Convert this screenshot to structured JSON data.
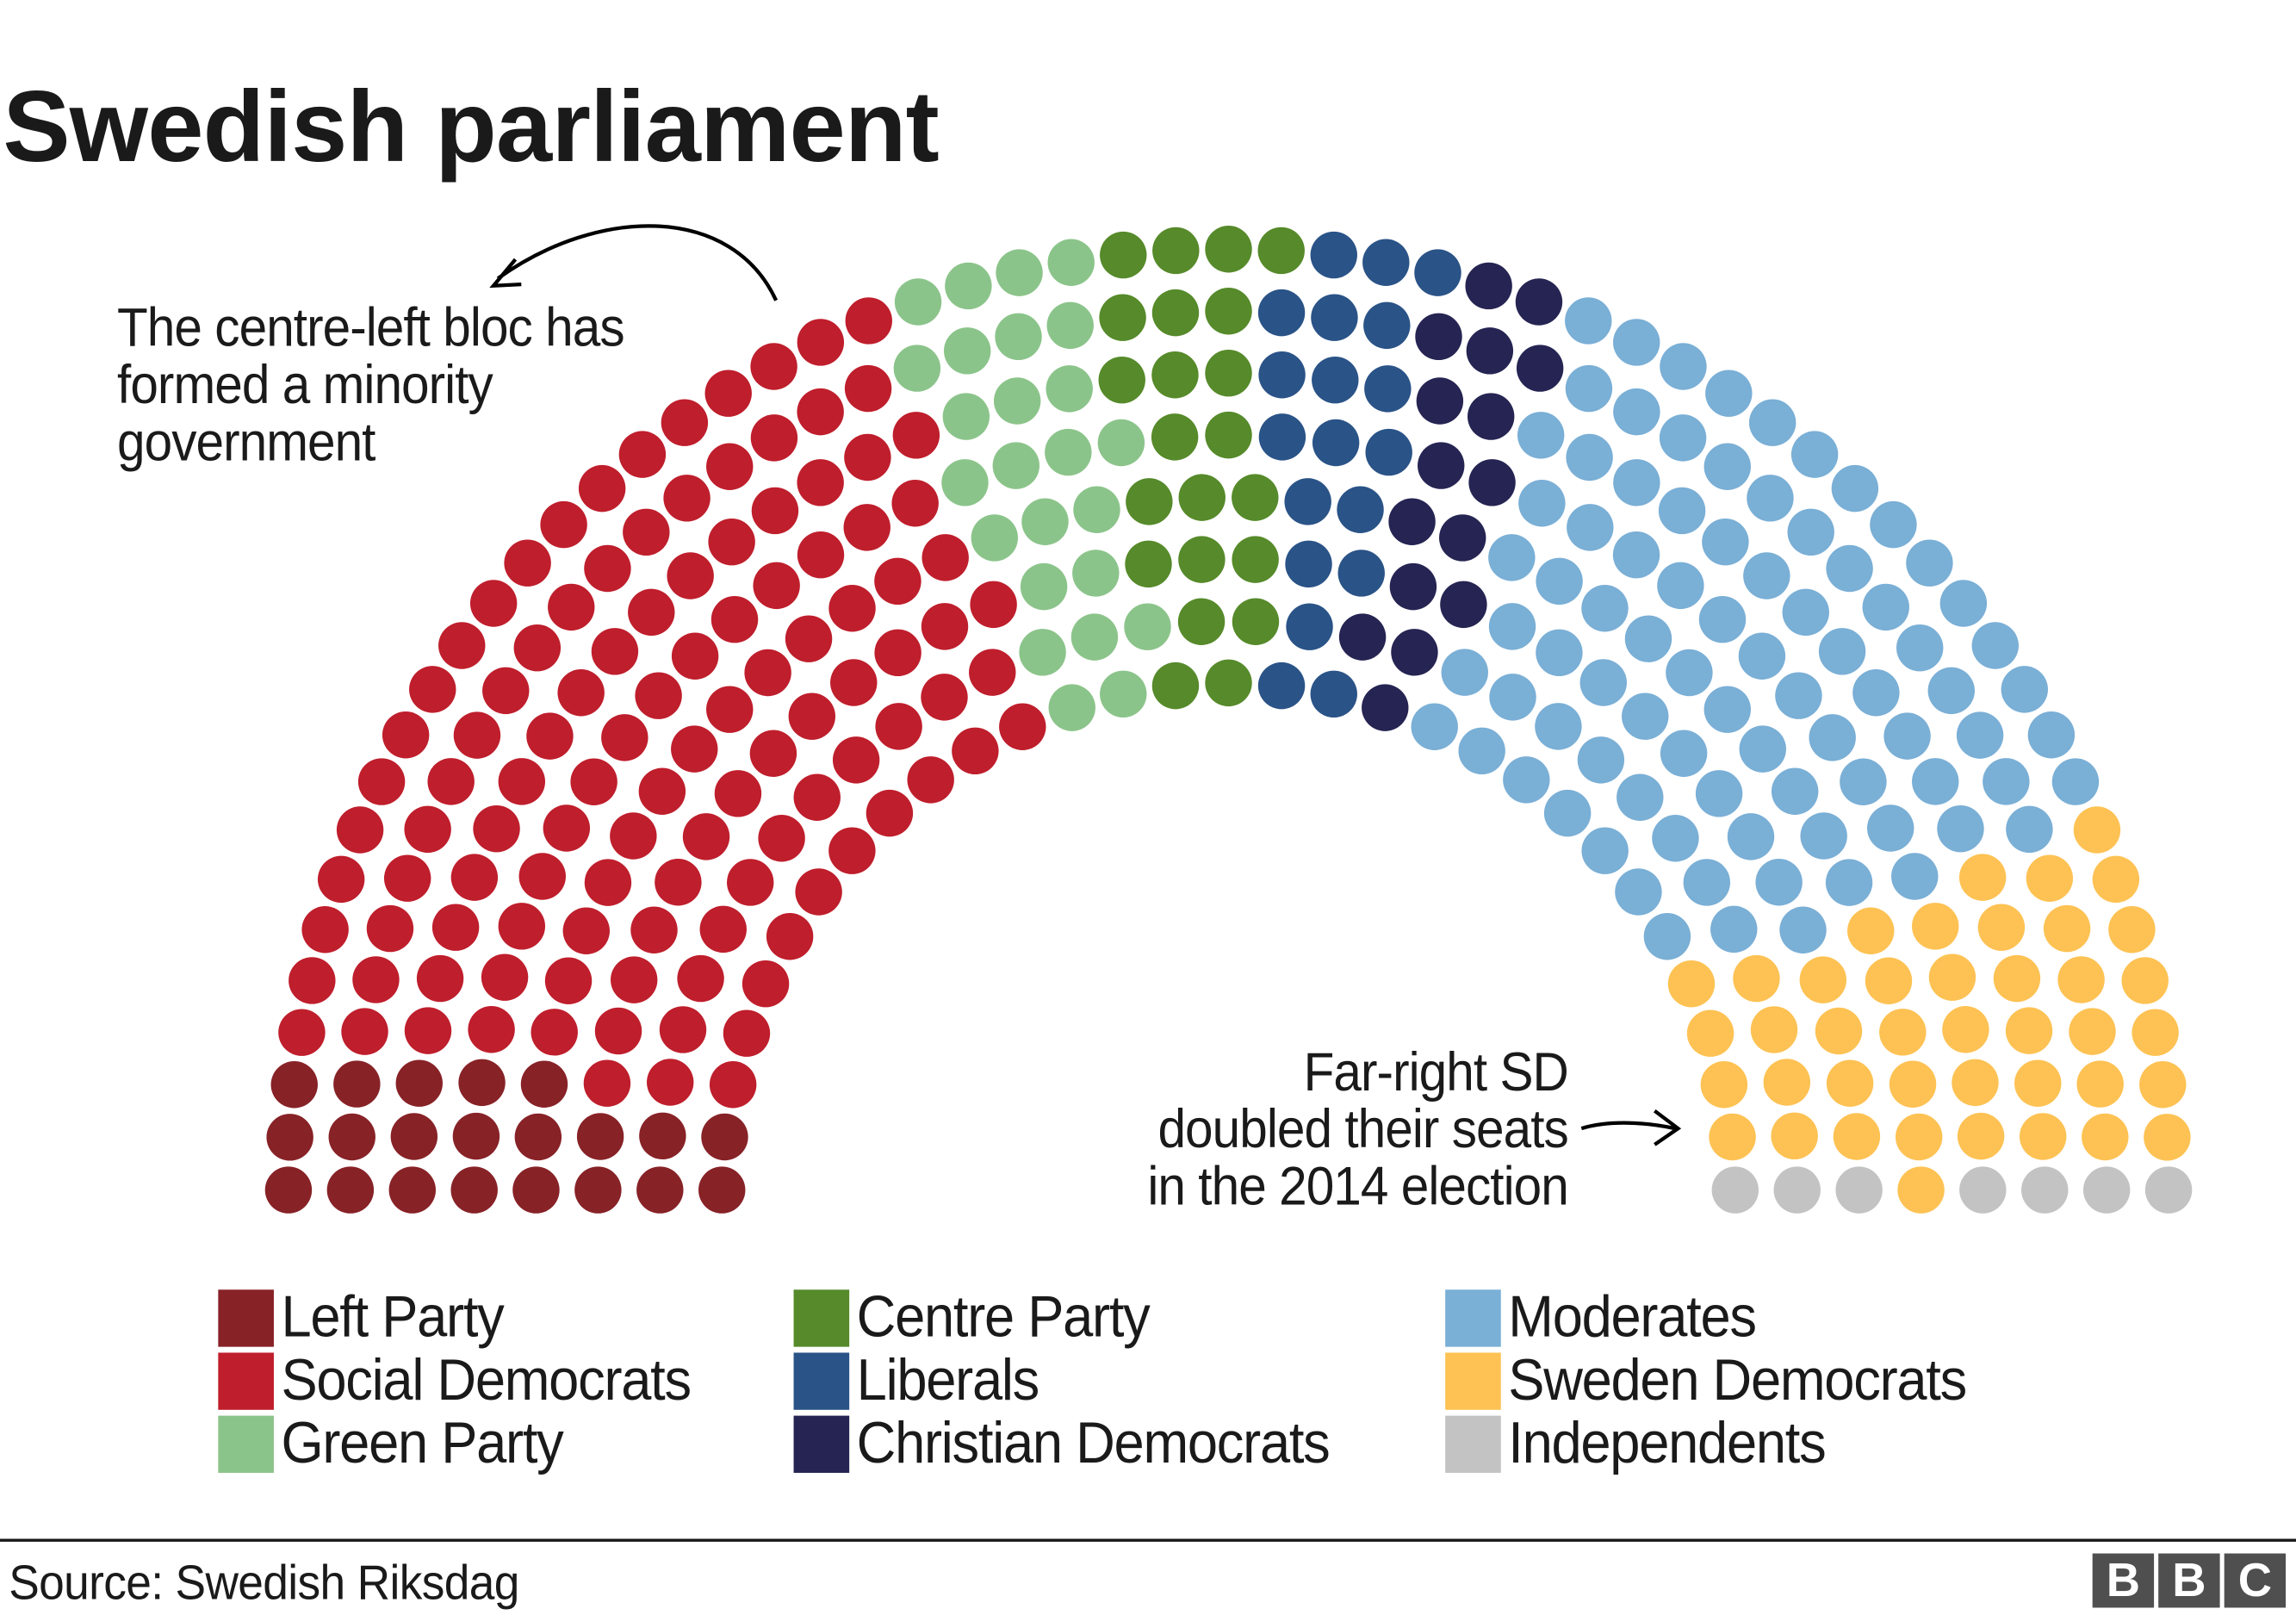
{
  "title": "Swedish parliament",
  "annotations": {
    "left": "The centre-left bloc has\nformed a minority\ngovernment",
    "right": "Far-right SD\ndoubled their seats\nin the 2014 election"
  },
  "source": "Source: Swedish Riksdag",
  "logo": [
    "B",
    "B",
    "C"
  ],
  "legend": [
    {
      "label": "Left Party",
      "color": "#872227"
    },
    {
      "label": "Social Democrats",
      "color": "#bf1e2c"
    },
    {
      "label": "Green Party",
      "color": "#8bc48a"
    },
    {
      "label": "Centre Party",
      "color": "#568a2a"
    },
    {
      "label": "Liberals",
      "color": "#2a5387"
    },
    {
      "label": "Christian Democrats",
      "color": "#252452"
    },
    {
      "label": "Moderates",
      "color": "#7aafd6"
    },
    {
      "label": "Sweden Democrats",
      "color": "#fdc253"
    },
    {
      "label": "Independents",
      "color": "#c3c3c3"
    }
  ],
  "chart_data": {
    "type": "parliament-hemicycle",
    "title": "Swedish parliament",
    "total_seats": 349,
    "rows": 8,
    "parties": [
      {
        "name": "Left Party",
        "seats": 21,
        "color": "#872227"
      },
      {
        "name": "Social Democrats",
        "seats": 113,
        "color": "#bf1e2c"
      },
      {
        "name": "Green Party",
        "seats": 25,
        "color": "#8bc48a"
      },
      {
        "name": "Centre Party",
        "seats": 22,
        "color": "#568a2a"
      },
      {
        "name": "Liberals",
        "seats": 19,
        "color": "#2a5387"
      },
      {
        "name": "Christian Democrats",
        "seats": 16,
        "color": "#252452"
      },
      {
        "name": "Moderates",
        "seats": 84,
        "color": "#7aafd6"
      },
      {
        "name": "Sweden Democrats",
        "seats": 42,
        "color": "#fdc253"
      },
      {
        "name": "Independents",
        "seats": 7,
        "color": "#c3c3c3"
      }
    ],
    "annotations": [
      "The centre-left bloc has formed a minority government",
      "Far-right SD doubled their seats in the 2014 election"
    ],
    "source": "Swedish Riksdag"
  }
}
